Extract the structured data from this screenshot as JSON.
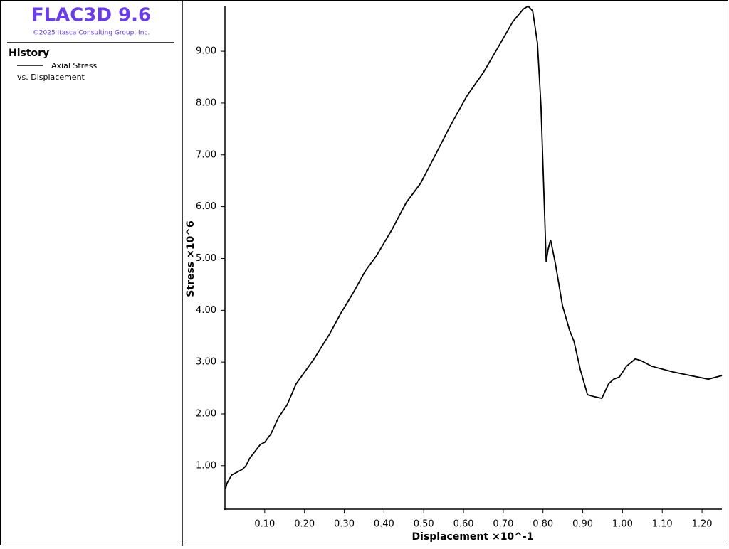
{
  "header": {
    "title": "FLAC3D 9.6",
    "copyright": "©2025 Itasca Consulting Group, Inc."
  },
  "chart_data": {
    "type": "line",
    "legend_title": "History",
    "legend_subtitle": "vs. Displacement",
    "x_label": "Displacement ×10^-1",
    "y_label": "Stress ×10^6",
    "xlim": [
      0,
      1.25
    ],
    "ylim": [
      0.16,
      9.88
    ],
    "xticks": [
      {
        "value": 0.1,
        "label": "0.10"
      },
      {
        "value": 0.2,
        "label": "0.20"
      },
      {
        "value": 0.3,
        "label": "0.30"
      },
      {
        "value": 0.4,
        "label": "0.40"
      },
      {
        "value": 0.5,
        "label": "0.50"
      },
      {
        "value": 0.6,
        "label": "0.60"
      },
      {
        "value": 0.7,
        "label": "0.70"
      },
      {
        "value": 0.8,
        "label": "0.80"
      },
      {
        "value": 0.9,
        "label": "0.90"
      },
      {
        "value": 1.0,
        "label": "1.00"
      },
      {
        "value": 1.1,
        "label": "1.10"
      },
      {
        "value": 1.2,
        "label": "1.20"
      }
    ],
    "yticks": [
      {
        "value": 1,
        "label": "1.00"
      },
      {
        "value": 2,
        "label": "2.00"
      },
      {
        "value": 3,
        "label": "3.00"
      },
      {
        "value": 4,
        "label": "4.00"
      },
      {
        "value": 5,
        "label": "5.00"
      },
      {
        "value": 6,
        "label": "6.00"
      },
      {
        "value": 7,
        "label": "7.00"
      },
      {
        "value": 8,
        "label": "8.00"
      },
      {
        "value": 9,
        "label": "9.00"
      }
    ],
    "x": [
      0.0014,
      0.005,
      0.017,
      0.044,
      0.053,
      0.062,
      0.089,
      0.1,
      0.116,
      0.134,
      0.156,
      0.179,
      0.224,
      0.263,
      0.292,
      0.322,
      0.354,
      0.381,
      0.421,
      0.456,
      0.492,
      0.532,
      0.564,
      0.608,
      0.65,
      0.688,
      0.724,
      0.751,
      0.763,
      0.774,
      0.786,
      0.795,
      0.804,
      0.808,
      0.813,
      0.819,
      0.831,
      0.849,
      0.867,
      0.878,
      0.894,
      0.912,
      0.93,
      0.948,
      0.965,
      0.978,
      0.992,
      1.01,
      1.032,
      1.046,
      1.073,
      1.127,
      1.171,
      1.216,
      1.25
    ],
    "series": [
      {
        "name": "Axial Stress",
        "color": "#000000",
        "values": [
          0.55,
          0.66,
          0.82,
          0.93,
          1.0,
          1.14,
          1.41,
          1.45,
          1.62,
          1.92,
          2.17,
          2.58,
          3.06,
          3.54,
          3.95,
          4.33,
          4.77,
          5.05,
          5.57,
          6.08,
          6.45,
          7.04,
          7.52,
          8.13,
          8.59,
          9.09,
          9.57,
          9.82,
          9.87,
          9.78,
          9.16,
          7.93,
          5.87,
          4.94,
          5.18,
          5.36,
          4.91,
          4.09,
          3.61,
          3.4,
          2.85,
          2.37,
          2.33,
          2.3,
          2.58,
          2.67,
          2.71,
          2.92,
          3.06,
          3.03,
          2.92,
          2.81,
          2.74,
          2.67,
          2.74
        ]
      }
    ]
  }
}
